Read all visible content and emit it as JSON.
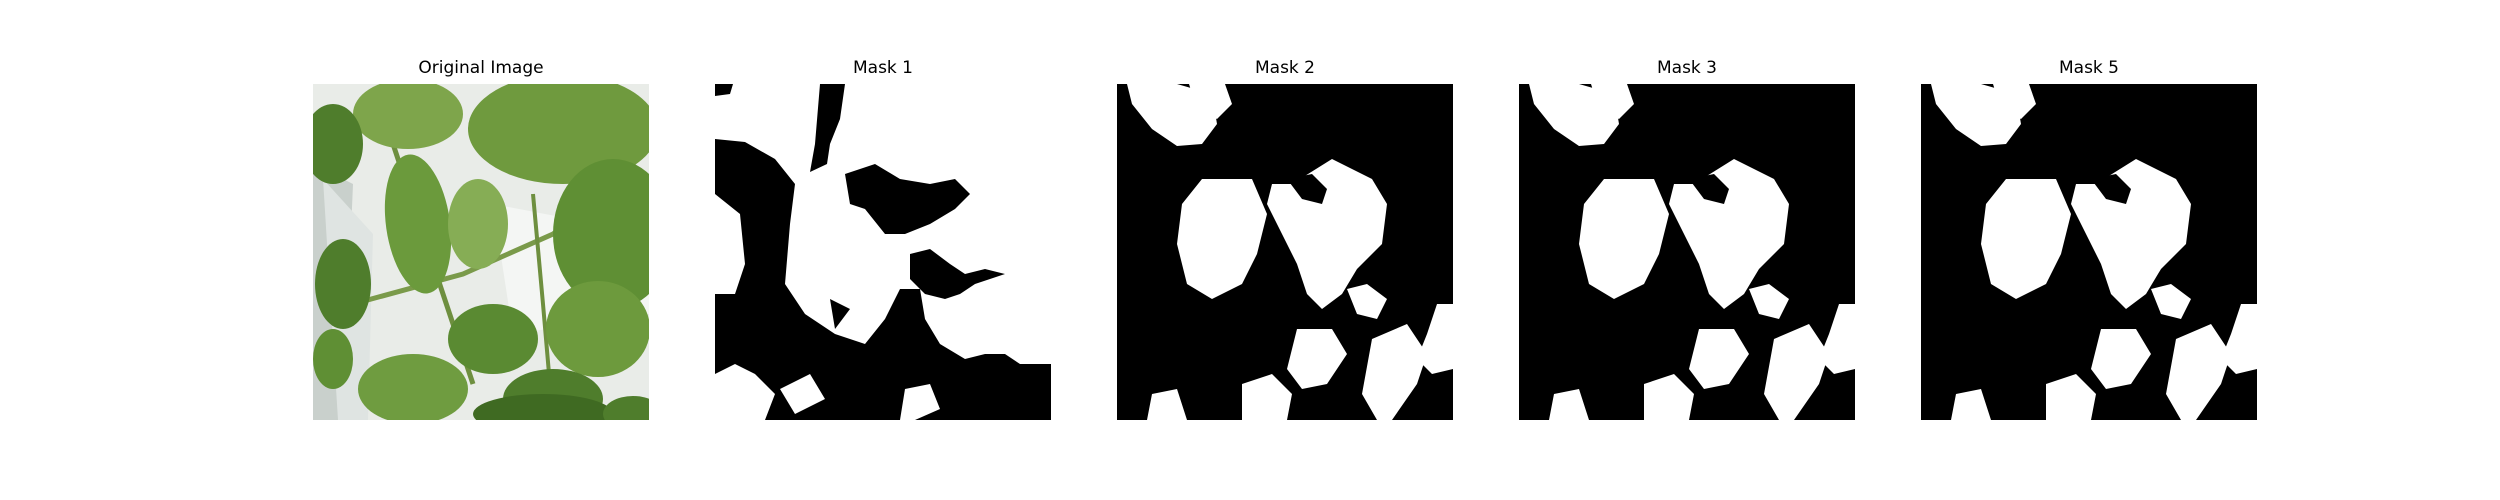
{
  "figure": {
    "panels": [
      {
        "id": "original",
        "title": "Original Image",
        "kind": "photo"
      },
      {
        "id": "mask1",
        "title": "Mask 1",
        "kind": "mask"
      },
      {
        "id": "mask2",
        "title": "Mask 2",
        "kind": "mask"
      },
      {
        "id": "mask3",
        "title": "Mask 3",
        "kind": "mask"
      },
      {
        "id": "mask5",
        "title": "Mask 5",
        "kind": "mask"
      }
    ],
    "colors": {
      "background": "#ffffff",
      "mask_foreground": "#000000",
      "mask_background": "#ffffff",
      "leaf_dark": "#3f6a22",
      "leaf_mid": "#5f8f34",
      "leaf_light": "#8fb35a",
      "backdrop": "#e9ece8"
    }
  }
}
